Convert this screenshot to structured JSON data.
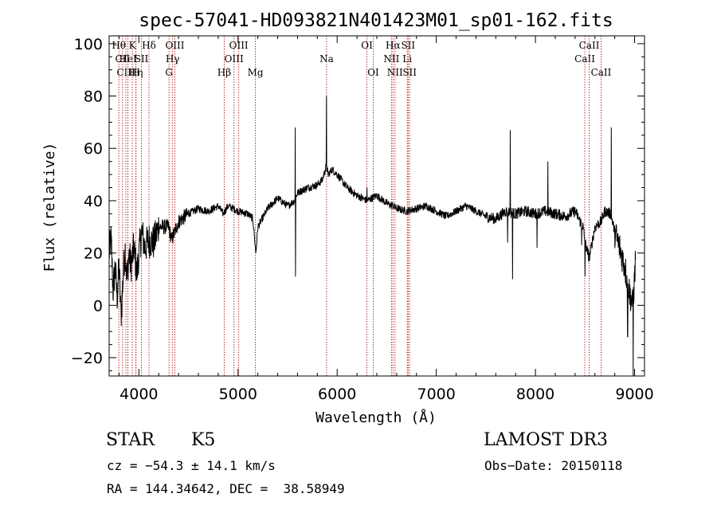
{
  "chart_data": {
    "type": "line",
    "title": "spec-57041-HD093821N401423M01_sp01-162.fits",
    "xlabel": "Wavelength (Å)",
    "ylabel": "Flux (relative)",
    "xlim": [
      3700,
      9100
    ],
    "ylim": [
      -27,
      103
    ],
    "x_ticks": [
      4000,
      5000,
      6000,
      7000,
      8000,
      9000
    ],
    "y_ticks": [
      -20,
      0,
      20,
      40,
      60,
      80,
      100
    ],
    "grid": false,
    "spectrum_anchors": [
      [
        3700,
        20
      ],
      [
        3720,
        25
      ],
      [
        3740,
        5
      ],
      [
        3760,
        15
      ],
      [
        3780,
        3
      ],
      [
        3800,
        15
      ],
      [
        3820,
        -4
      ],
      [
        3840,
        10
      ],
      [
        3860,
        22
      ],
      [
        3880,
        10
      ],
      [
        3900,
        20
      ],
      [
        3920,
        15
      ],
      [
        3950,
        22
      ],
      [
        3980,
        12
      ],
      [
        4000,
        20
      ],
      [
        4030,
        28
      ],
      [
        4060,
        22
      ],
      [
        4100,
        25
      ],
      [
        4150,
        24
      ],
      [
        4200,
        30
      ],
      [
        4300,
        30
      ],
      [
        4330,
        25
      ],
      [
        4400,
        32
      ],
      [
        4500,
        35
      ],
      [
        4600,
        37
      ],
      [
        4700,
        36
      ],
      [
        4800,
        38
      ],
      [
        4850,
        35
      ],
      [
        4900,
        38
      ],
      [
        5000,
        36
      ],
      [
        5100,
        35
      ],
      [
        5150,
        33
      ],
      [
        5180,
        20
      ],
      [
        5200,
        30
      ],
      [
        5300,
        37
      ],
      [
        5400,
        41
      ],
      [
        5500,
        38
      ],
      [
        5570,
        40
      ],
      [
        5600,
        43
      ],
      [
        5700,
        45
      ],
      [
        5800,
        46
      ],
      [
        5850,
        48
      ],
      [
        5890,
        53
      ],
      [
        5910,
        50
      ],
      [
        5950,
        52
      ],
      [
        6000,
        50
      ],
      [
        6100,
        45
      ],
      [
        6200,
        42
      ],
      [
        6300,
        40
      ],
      [
        6400,
        42
      ],
      [
        6500,
        39
      ],
      [
        6563,
        38
      ],
      [
        6600,
        37
      ],
      [
        6700,
        36
      ],
      [
        6800,
        37
      ],
      [
        6900,
        38
      ],
      [
        7000,
        36
      ],
      [
        7100,
        34
      ],
      [
        7200,
        36
      ],
      [
        7300,
        38
      ],
      [
        7400,
        36
      ],
      [
        7500,
        34
      ],
      [
        7600,
        33
      ],
      [
        7700,
        36
      ],
      [
        7800,
        35
      ],
      [
        7900,
        36
      ],
      [
        8000,
        35
      ],
      [
        8100,
        36
      ],
      [
        8200,
        35
      ],
      [
        8300,
        34
      ],
      [
        8400,
        36
      ],
      [
        8480,
        30
      ],
      [
        8500,
        24
      ],
      [
        8542,
        18
      ],
      [
        8600,
        30
      ],
      [
        8662,
        32
      ],
      [
        8700,
        36
      ],
      [
        8760,
        35
      ],
      [
        8800,
        28
      ],
      [
        8850,
        22
      ],
      [
        8900,
        15
      ],
      [
        8950,
        5
      ],
      [
        8980,
        0
      ],
      [
        9000,
        10
      ],
      [
        9010,
        20
      ]
    ],
    "spikes": [
      [
        5577,
        68
      ],
      [
        5580,
        11
      ],
      [
        5892,
        80
      ],
      [
        6300,
        45
      ],
      [
        7720,
        24
      ],
      [
        7745,
        67
      ],
      [
        7770,
        10
      ],
      [
        8015,
        22
      ],
      [
        8125,
        55
      ],
      [
        8465,
        23
      ],
      [
        8500,
        11
      ],
      [
        8765,
        68
      ],
      [
        8930,
        -12
      ],
      [
        8985,
        -27
      ]
    ],
    "line_markers": [
      {
        "wl": 3798,
        "label": "Hθ",
        "row": 0
      },
      {
        "wl": 3835,
        "label": "CII",
        "row": 1
      },
      {
        "wl": 3869,
        "label": "CIII",
        "row": 2
      },
      {
        "wl": 3889,
        "label": "HeI",
        "row": 1
      },
      {
        "wl": 3934,
        "label": "K",
        "row": 0
      },
      {
        "wl": 3970,
        "label": "H",
        "row": 2
      },
      {
        "wl": 3970,
        "label": "Hη",
        "row": 2
      },
      {
        "wl": 4026,
        "label": "SII",
        "row": 1
      },
      {
        "wl": 4102,
        "label": "Hδ",
        "row": 0
      },
      {
        "wl": 4304,
        "label": "G",
        "row": 2
      },
      {
        "wl": 4340,
        "label": "Hγ",
        "row": 1
      },
      {
        "wl": 4363,
        "label": "OIII",
        "row": 0
      },
      {
        "wl": 4861,
        "label": "Hβ",
        "row": 2
      },
      {
        "wl": 4959,
        "label": "OIII",
        "row": 1
      },
      {
        "wl": 5007,
        "label": "OIII",
        "row": 0
      },
      {
        "wl": 5175,
        "label": "Mg",
        "row": 2
      },
      {
        "wl": 5893,
        "label": "Na",
        "row": 1
      },
      {
        "wl": 6300,
        "label": "OI",
        "row": 0
      },
      {
        "wl": 6364,
        "label": "OI",
        "row": 2
      },
      {
        "wl": 6548,
        "label": "NII",
        "row": 1
      },
      {
        "wl": 6563,
        "label": "Hα",
        "row": 0
      },
      {
        "wl": 6583,
        "label": "NII",
        "row": 2
      },
      {
        "wl": 6707,
        "label": "Li",
        "row": 1
      },
      {
        "wl": 6716,
        "label": "SII",
        "row": 0
      },
      {
        "wl": 6731,
        "label": "SII",
        "row": 2
      },
      {
        "wl": 8498,
        "label": "CaII",
        "row": 1
      },
      {
        "wl": 8542,
        "label": "CaII",
        "row": 0
      },
      {
        "wl": 8662,
        "label": "CaII",
        "row": 2
      }
    ]
  },
  "info": {
    "object_class": "STAR",
    "subclass": "K5",
    "survey": "LAMOST DR3",
    "cz": "cz = −54.3 ± 14.1 km/s",
    "obs_date": "Obs−Date: 20150118",
    "radec": "RA = 144.34642, DEC =  38.58949"
  }
}
